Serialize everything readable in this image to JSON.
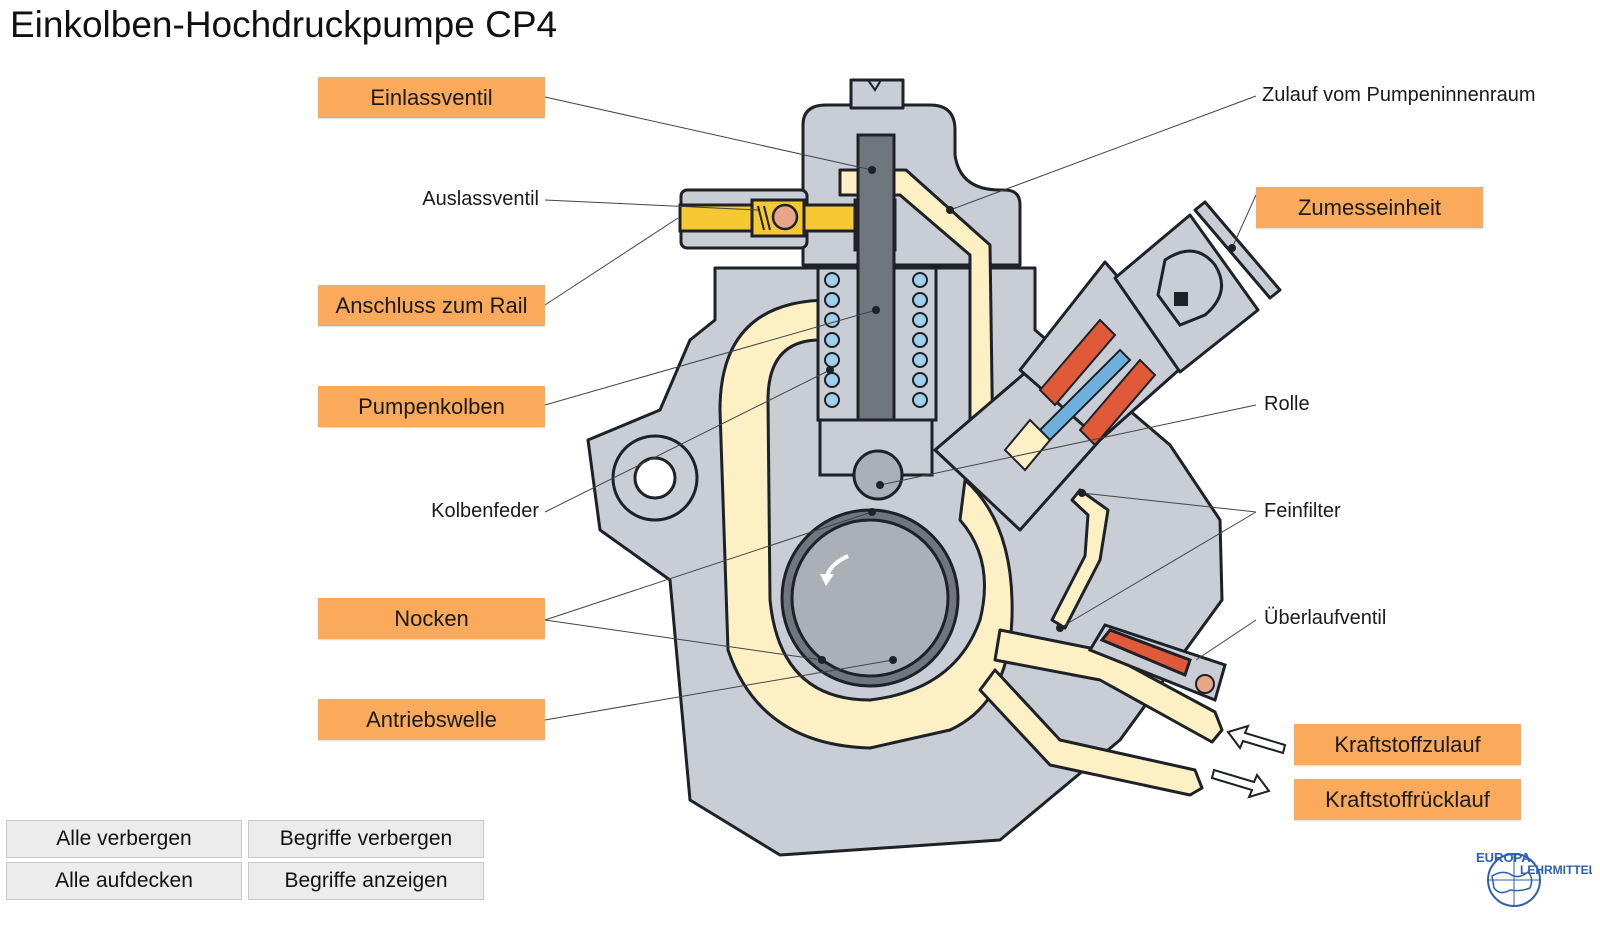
{
  "title": "Einkolben-Hochdruckpumpe CP4",
  "labels": {
    "einlassventil": "Einlassventil",
    "auslassventil": "Auslassventil",
    "anschluss_rail": "Anschluss zum Rail",
    "pumpenkolben": "Pumpenkolben",
    "kolbenfeder": "Kolbenfeder",
    "nocken": "Nocken",
    "antriebswelle": "Antriebswelle",
    "zulauf_pumpeninnenraum": "Zulauf vom Pumpeninnenraum",
    "zumesseinheit": "Zumesseinheit",
    "rolle": "Rolle",
    "feinfilter": "Feinfilter",
    "ueberlaufventil": "Überlaufventil",
    "kraftstoffzulauf": "Kraftstoffzulauf",
    "kraftstoffruecklauf": "Kraftstoffrücklauf"
  },
  "buttons": {
    "hide_all": "Alle verbergen",
    "show_all": "Alle aufdecken",
    "hide_terms": "Begriffe verbergen",
    "show_terms": "Begriffe anzeigen"
  },
  "logo": {
    "line1": "EUROPA",
    "line2": "LEHRMITTEL"
  },
  "colors": {
    "label_orange": "#fbaa5b",
    "housing_grey": "#c9cdd6",
    "fuel_beige": "#fdf0c4",
    "rail_yellow": "#f6c832",
    "cam_grey": "#6f767c",
    "shaft_grey": "#aab0b5",
    "spring_blue": "#9fd0ee",
    "coil_red": "#e05a3a",
    "logo_blue": "#2f5fb0"
  }
}
